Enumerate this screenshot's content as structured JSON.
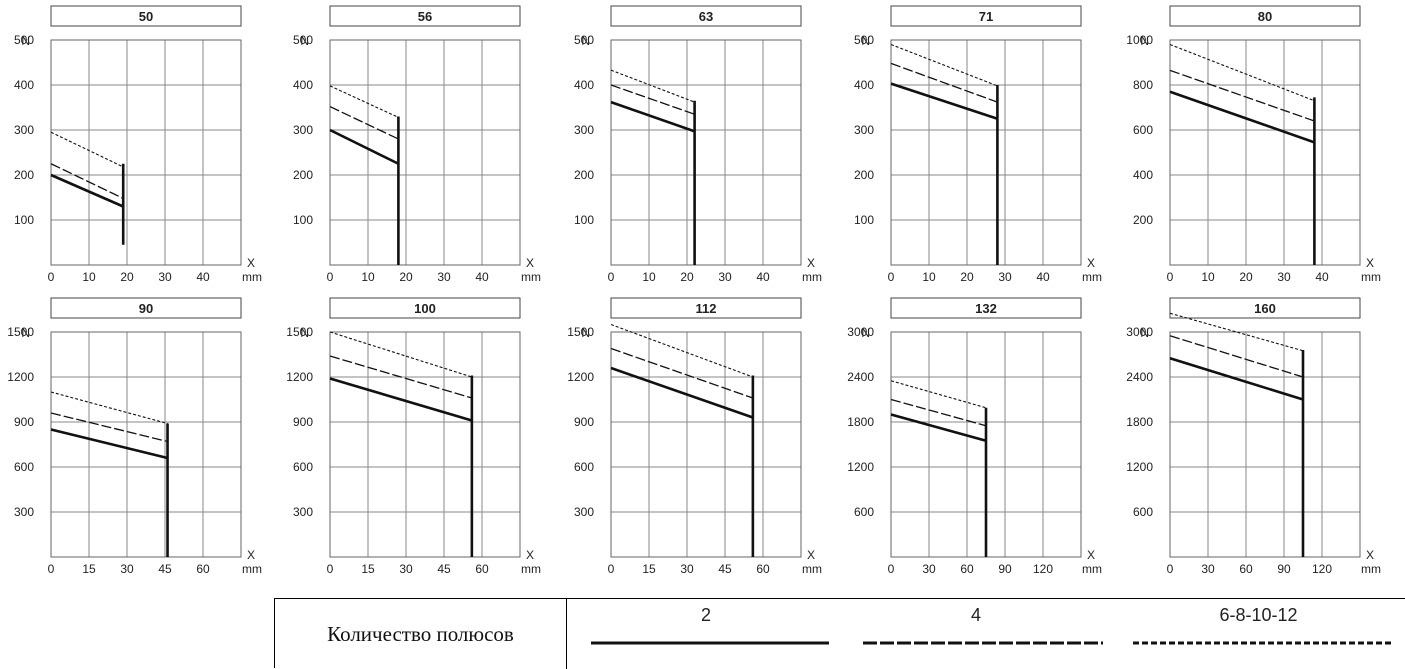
{
  "chart_data": [
    {
      "type": "line",
      "title": "50",
      "ylabel": "N",
      "xlabel": "X",
      "xunit": "mm",
      "ylim": [
        0,
        500
      ],
      "yticks": [
        100,
        200,
        300,
        400,
        500
      ],
      "xticks": [
        0,
        10,
        20,
        30,
        40
      ],
      "xlim": [
        0,
        50
      ],
      "end_x": 19,
      "series": [
        {
          "name": "2",
          "values": [
            200,
            130
          ]
        },
        {
          "name": "4",
          "values": [
            225,
            148
          ]
        },
        {
          "name": "6-8-10-12",
          "values": [
            295,
            218
          ]
        }
      ],
      "bar": [
        45,
        225
      ]
    },
    {
      "type": "line",
      "title": "56",
      "ylabel": "N",
      "xlabel": "X",
      "xunit": "mm",
      "ylim": [
        0,
        500
      ],
      "yticks": [
        100,
        200,
        300,
        400,
        500
      ],
      "xticks": [
        0,
        10,
        20,
        30,
        40
      ],
      "xlim": [
        0,
        50
      ],
      "end_x": 18,
      "series": [
        {
          "name": "2",
          "values": [
            300,
            225
          ]
        },
        {
          "name": "4",
          "values": [
            352,
            280
          ]
        },
        {
          "name": "6-8-10-12",
          "values": [
            398,
            328
          ]
        }
      ],
      "bar": [
        0,
        330
      ]
    },
    {
      "type": "line",
      "title": "63",
      "ylabel": "N",
      "xlabel": "X",
      "xunit": "mm",
      "ylim": [
        0,
        500
      ],
      "yticks": [
        100,
        200,
        300,
        400,
        500
      ],
      "xticks": [
        0,
        10,
        20,
        30,
        40
      ],
      "xlim": [
        0,
        50
      ],
      "end_x": 22,
      "series": [
        {
          "name": "2",
          "values": [
            362,
            297
          ]
        },
        {
          "name": "4",
          "values": [
            400,
            335
          ]
        },
        {
          "name": "6-8-10-12",
          "values": [
            433,
            362
          ]
        }
      ],
      "bar": [
        0,
        365
      ]
    },
    {
      "type": "line",
      "title": "71",
      "ylabel": "N",
      "xlabel": "X",
      "xunit": "mm",
      "ylim": [
        0,
        500
      ],
      "yticks": [
        100,
        200,
        300,
        400,
        500
      ],
      "xticks": [
        0,
        10,
        20,
        30,
        40
      ],
      "xlim": [
        0,
        50
      ],
      "end_x": 28,
      "series": [
        {
          "name": "2",
          "values": [
            403,
            325
          ]
        },
        {
          "name": "4",
          "values": [
            448,
            362
          ]
        },
        {
          "name": "6-8-10-12",
          "values": [
            490,
            398
          ]
        }
      ],
      "bar": [
        0,
        400
      ]
    },
    {
      "type": "line",
      "title": "80",
      "ylabel": "N",
      "xlabel": "X",
      "xunit": "mm",
      "ylim": [
        0,
        1000
      ],
      "yticks": [
        200,
        400,
        600,
        800,
        1000
      ],
      "xticks": [
        0,
        10,
        20,
        30,
        40
      ],
      "xlim": [
        0,
        50
      ],
      "end_x": 38,
      "series": [
        {
          "name": "2",
          "values": [
            770,
            545
          ]
        },
        {
          "name": "4",
          "values": [
            865,
            640
          ]
        },
        {
          "name": "6-8-10-12",
          "values": [
            980,
            730
          ]
        }
      ],
      "bar": [
        0,
        745
      ]
    },
    {
      "type": "line",
      "title": "90",
      "ylabel": "N",
      "xlabel": "X",
      "xunit": "mm",
      "ylim": [
        0,
        1500
      ],
      "yticks": [
        300,
        600,
        900,
        1200,
        1500
      ],
      "xticks": [
        0,
        15,
        30,
        45,
        60
      ],
      "xlim": [
        0,
        75
      ],
      "end_x": 46,
      "series": [
        {
          "name": "2",
          "values": [
            850,
            660
          ]
        },
        {
          "name": "4",
          "values": [
            960,
            770
          ]
        },
        {
          "name": "6-8-10-12",
          "values": [
            1100,
            890
          ]
        }
      ],
      "bar": [
        0,
        890
      ]
    },
    {
      "type": "line",
      "title": "100",
      "ylabel": "N",
      "xlabel": "X",
      "xunit": "mm",
      "ylim": [
        0,
        1500
      ],
      "yticks": [
        300,
        600,
        900,
        1200,
        1500
      ],
      "xticks": [
        0,
        15,
        30,
        45,
        60
      ],
      "xlim": [
        0,
        75
      ],
      "end_x": 56,
      "series": [
        {
          "name": "2",
          "values": [
            1190,
            910
          ]
        },
        {
          "name": "4",
          "values": [
            1340,
            1060
          ]
        },
        {
          "name": "6-8-10-12",
          "values": [
            1500,
            1200
          ]
        }
      ],
      "bar": [
        0,
        1210
      ]
    },
    {
      "type": "line",
      "title": "112",
      "ylabel": "N",
      "xlabel": "X",
      "xunit": "mm",
      "ylim": [
        0,
        1500
      ],
      "yticks": [
        300,
        600,
        900,
        1200,
        1500
      ],
      "xticks": [
        0,
        15,
        30,
        45,
        60
      ],
      "xlim": [
        0,
        75
      ],
      "end_x": 56,
      "series": [
        {
          "name": "2",
          "values": [
            1260,
            930
          ]
        },
        {
          "name": "4",
          "values": [
            1390,
            1060
          ]
        },
        {
          "name": "6-8-10-12",
          "values": [
            1550,
            1200
          ]
        }
      ],
      "bar": [
        0,
        1210
      ]
    },
    {
      "type": "line",
      "title": "132",
      "ylabel": "N",
      "xlabel": "X",
      "xunit": "mm",
      "ylim": [
        0,
        3000
      ],
      "yticks": [
        600,
        1200,
        1800,
        2400,
        3000
      ],
      "xticks": [
        0,
        30,
        60,
        90,
        120
      ],
      "xlim": [
        0,
        150
      ],
      "end_x": 75,
      "series": [
        {
          "name": "2",
          "values": [
            1900,
            1550
          ]
        },
        {
          "name": "4",
          "values": [
            2100,
            1750
          ]
        },
        {
          "name": "6-8-10-12",
          "values": [
            2350,
            1990
          ]
        }
      ],
      "bar": [
        0,
        1990
      ]
    },
    {
      "type": "line",
      "title": "160",
      "ylabel": "N",
      "xlabel": "X",
      "xunit": "mm",
      "ylim": [
        0,
        3000
      ],
      "yticks": [
        600,
        1200,
        1800,
        2400,
        3000
      ],
      "xticks": [
        0,
        30,
        60,
        90,
        120
      ],
      "xlim": [
        0,
        150
      ],
      "end_x": 105,
      "series": [
        {
          "name": "2",
          "values": [
            2650,
            2100
          ]
        },
        {
          "name": "4",
          "values": [
            2950,
            2400
          ]
        },
        {
          "name": "6-8-10-12",
          "values": [
            3250,
            2750
          ]
        }
      ],
      "bar": [
        0,
        2760
      ]
    }
  ],
  "legend": {
    "label": "Количество полюсов",
    "items": [
      {
        "name": "2",
        "style": "solid"
      },
      {
        "name": "4",
        "style": "dashed"
      },
      {
        "name": "6-8-10-12",
        "style": "dotted"
      }
    ]
  }
}
